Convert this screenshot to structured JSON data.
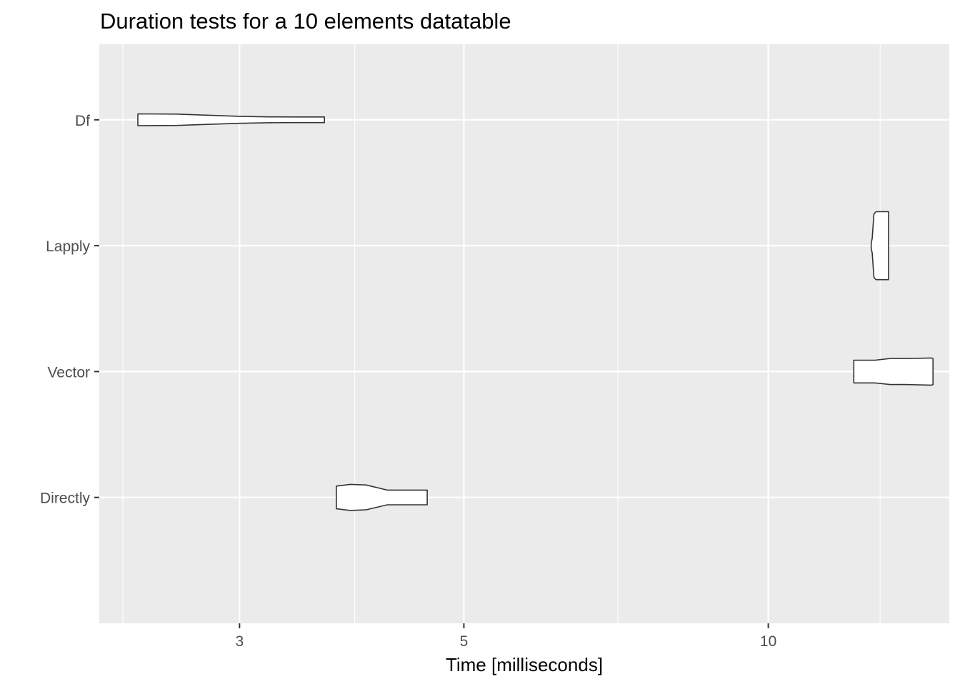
{
  "chart_data": {
    "type": "violin",
    "title": "Duration tests for a  10  elements  datatable",
    "xlabel": "Time [milliseconds]",
    "ylabel": "",
    "x_scale": "log10",
    "xlim": [
      2.18,
      15.1
    ],
    "x_ticks": [
      3,
      5,
      10
    ],
    "x_tick_labels": [
      "3",
      "5",
      "10"
    ],
    "x_minor_ticks": [
      2.3,
      3.9,
      7.1,
      12.9
    ],
    "categories": [
      "Df",
      "Lapply",
      "Vector",
      "Directly"
    ],
    "grid": true,
    "legend": "none",
    "colors": {
      "panel": "#EBEBEB",
      "grid": "#FFFFFF",
      "violin_fill": "#FFFFFF",
      "violin_stroke": "#333333",
      "tick_label": "#4D4D4D",
      "title": "#000000"
    },
    "violins": [
      {
        "category": "Df",
        "profile": [
          [
            2.38,
            0.105
          ],
          [
            2.6,
            0.1
          ],
          [
            3.0,
            0.062
          ],
          [
            3.2,
            0.052
          ],
          [
            3.4,
            0.05
          ],
          [
            3.64,
            0.05
          ]
        ]
      },
      {
        "category": "Lapply",
        "profile": [
          [
            12.64,
            0.045
          ],
          [
            12.67,
            0.13
          ],
          [
            12.72,
            0.56
          ],
          [
            12.78,
            0.6
          ],
          [
            13.1,
            0.6
          ],
          [
            13.15,
            0.6
          ]
        ]
      },
      {
        "category": "Vector",
        "profile": [
          [
            12.15,
            0.2
          ],
          [
            12.6,
            0.2
          ],
          [
            12.75,
            0.2
          ],
          [
            13.2,
            0.23
          ],
          [
            13.7,
            0.23
          ],
          [
            14.5,
            0.24
          ],
          [
            14.55,
            0.23
          ]
        ]
      },
      {
        "category": "Directly",
        "profile": [
          [
            3.74,
            0.2
          ],
          [
            3.86,
            0.23
          ],
          [
            4.0,
            0.22
          ],
          [
            4.2,
            0.13
          ],
          [
            4.35,
            0.13
          ],
          [
            4.6,
            0.13
          ]
        ]
      }
    ]
  }
}
